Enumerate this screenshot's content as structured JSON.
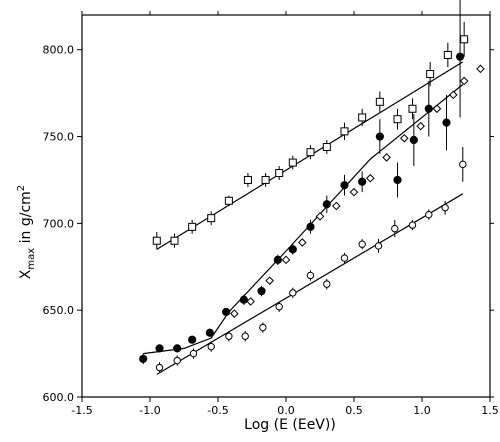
{
  "chart_data": {
    "type": "scatter",
    "title": "",
    "xlabel": "Log (E (EeV))",
    "ylabel_main": "X",
    "ylabel_sub": "max",
    "ylabel_tail": " in g/cm",
    "ylabel_sup": "2",
    "xlim": [
      -1.5,
      1.5
    ],
    "ylim": [
      600,
      820
    ],
    "xticks": [
      -1.5,
      -1.0,
      -0.5,
      0.0,
      0.5,
      1.0,
      1.5
    ],
    "xtick_labels": [
      "-1.5",
      "-1.0",
      "-0.5",
      "0.0",
      "0.5",
      "1.0",
      "1.5"
    ],
    "yticks": [
      600,
      650,
      700,
      750,
      800
    ],
    "ytick_labels": [
      "600.0",
      "650.0",
      "700.0",
      "750.0",
      "800.0"
    ],
    "grid": false,
    "series": [
      {
        "marker": "open-square",
        "points": [
          {
            "x": -0.95,
            "y": 690,
            "e": 5
          },
          {
            "x": -0.82,
            "y": 690,
            "e": 4
          },
          {
            "x": -0.69,
            "y": 698,
            "e": 4
          },
          {
            "x": -0.55,
            "y": 703,
            "e": 4
          },
          {
            "x": -0.42,
            "y": 713,
            "e": 3
          },
          {
            "x": -0.28,
            "y": 725,
            "e": 4
          },
          {
            "x": -0.15,
            "y": 725,
            "e": 4
          },
          {
            "x": -0.05,
            "y": 729,
            "e": 4
          },
          {
            "x": 0.05,
            "y": 735,
            "e": 4
          },
          {
            "x": 0.18,
            "y": 741,
            "e": 4
          },
          {
            "x": 0.3,
            "y": 744,
            "e": 4
          },
          {
            "x": 0.43,
            "y": 753,
            "e": 5
          },
          {
            "x": 0.56,
            "y": 761,
            "e": 5
          },
          {
            "x": 0.69,
            "y": 770,
            "e": 6
          },
          {
            "x": 0.82,
            "y": 760,
            "e": 6
          },
          {
            "x": 0.93,
            "y": 766,
            "e": 6
          },
          {
            "x": 1.06,
            "y": 786,
            "e": 7
          },
          {
            "x": 1.19,
            "y": 797,
            "e": 7
          },
          {
            "x": 1.31,
            "y": 806,
            "e": 10
          }
        ]
      },
      {
        "marker": "filled-circle",
        "points": [
          {
            "x": -1.05,
            "y": 622,
            "e": 3
          },
          {
            "x": -0.93,
            "y": 628,
            "e": 2
          },
          {
            "x": -0.8,
            "y": 628,
            "e": 2
          },
          {
            "x": -0.69,
            "y": 633,
            "e": 2
          },
          {
            "x": -0.56,
            "y": 637,
            "e": 2
          },
          {
            "x": -0.44,
            "y": 649,
            "e": 2
          },
          {
            "x": -0.31,
            "y": 656,
            "e": 3
          },
          {
            "x": -0.18,
            "y": 661,
            "e": 3
          },
          {
            "x": -0.06,
            "y": 679,
            "e": 3
          },
          {
            "x": 0.05,
            "y": 685,
            "e": 3
          },
          {
            "x": 0.18,
            "y": 698,
            "e": 4
          },
          {
            "x": 0.3,
            "y": 711,
            "e": 5
          },
          {
            "x": 0.43,
            "y": 722,
            "e": 6
          },
          {
            "x": 0.56,
            "y": 724,
            "e": 6
          },
          {
            "x": 0.69,
            "y": 750,
            "e": 10
          },
          {
            "x": 0.82,
            "y": 725,
            "e": 10
          },
          {
            "x": 0.94,
            "y": 748,
            "e": 15
          },
          {
            "x": 1.05,
            "y": 766,
            "e": 16
          },
          {
            "x": 1.18,
            "y": 758,
            "e": 16
          },
          {
            "x": 1.28,
            "y": 796,
            "e": 35
          }
        ]
      },
      {
        "marker": "open-circle",
        "points": [
          {
            "x": -0.93,
            "y": 617,
            "e": 3
          },
          {
            "x": -0.8,
            "y": 621,
            "e": 3
          },
          {
            "x": -0.68,
            "y": 625,
            "e": 3
          },
          {
            "x": -0.55,
            "y": 629,
            "e": 3
          },
          {
            "x": -0.42,
            "y": 635,
            "e": 3
          },
          {
            "x": -0.3,
            "y": 635,
            "e": 3
          },
          {
            "x": -0.17,
            "y": 640,
            "e": 3
          },
          {
            "x": -0.05,
            "y": 652,
            "e": 3
          },
          {
            "x": 0.05,
            "y": 660,
            "e": 3
          },
          {
            "x": 0.18,
            "y": 670,
            "e": 3
          },
          {
            "x": 0.3,
            "y": 665,
            "e": 3
          },
          {
            "x": 0.43,
            "y": 680,
            "e": 3
          },
          {
            "x": 0.56,
            "y": 688,
            "e": 3
          },
          {
            "x": 0.68,
            "y": 687,
            "e": 4
          },
          {
            "x": 0.8,
            "y": 697,
            "e": 5
          },
          {
            "x": 0.93,
            "y": 699,
            "e": 3
          },
          {
            "x": 1.05,
            "y": 705,
            "e": 3
          },
          {
            "x": 1.17,
            "y": 709,
            "e": 4
          },
          {
            "x": 1.3,
            "y": 734,
            "e": 10
          }
        ]
      },
      {
        "marker": "open-diamond",
        "points": [
          {
            "x": -0.38,
            "y": 648
          },
          {
            "x": -0.26,
            "y": 655
          },
          {
            "x": -0.12,
            "y": 667
          },
          {
            "x": 0.0,
            "y": 679
          },
          {
            "x": 0.12,
            "y": 689
          },
          {
            "x": 0.25,
            "y": 704
          },
          {
            "x": 0.37,
            "y": 710
          },
          {
            "x": 0.5,
            "y": 718
          },
          {
            "x": 0.62,
            "y": 726
          },
          {
            "x": 0.74,
            "y": 738
          },
          {
            "x": 0.87,
            "y": 749
          },
          {
            "x": 0.99,
            "y": 756
          },
          {
            "x": 1.11,
            "y": 766
          },
          {
            "x": 1.23,
            "y": 774
          },
          {
            "x": 1.31,
            "y": 782
          },
          {
            "x": 1.43,
            "y": 789
          }
        ]
      }
    ],
    "fit_lines": [
      {
        "points": [
          [
            -0.95,
            685
          ],
          [
            1.3,
            793
          ]
        ]
      },
      {
        "points": [
          [
            -1.05,
            625
          ],
          [
            -0.75,
            628
          ],
          [
            -0.55,
            634
          ],
          [
            -0.42,
            649
          ],
          [
            0.0,
            684
          ],
          [
            0.62,
            737
          ],
          [
            1.3,
            780
          ]
        ]
      },
      {
        "points": [
          [
            -0.95,
            613
          ],
          [
            1.3,
            717
          ]
        ]
      }
    ]
  }
}
